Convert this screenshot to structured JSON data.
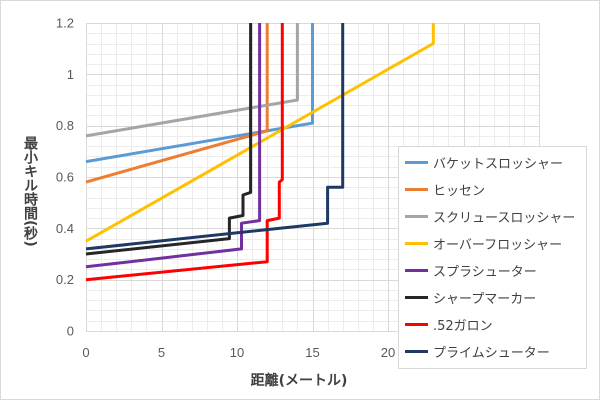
{
  "chart_data": {
    "type": "line",
    "xlabel": "距離(メートル)",
    "ylabel": "最小キル時間(秒)",
    "xlim": [
      0,
      30
    ],
    "ylim": [
      0,
      1.2
    ],
    "xticks": [
      "0",
      "5",
      "10",
      "15",
      "20"
    ],
    "yticks": [
      "0",
      "0.2",
      "0.4",
      "0.6",
      "0.8",
      "1",
      "1.2"
    ],
    "grid": true,
    "minor_grid": true,
    "legend_position": "right",
    "series": [
      {
        "name": "バケットスロッシャー",
        "color": "#5B9BD5",
        "points": [
          [
            0,
            0.66
          ],
          [
            15,
            0.81
          ],
          [
            15,
            1.2
          ]
        ]
      },
      {
        "name": "ヒッセン",
        "color": "#ED7D31",
        "points": [
          [
            0,
            0.58
          ],
          [
            12,
            0.78
          ],
          [
            12,
            1.2
          ]
        ]
      },
      {
        "name": "スクリュースロッシャー",
        "color": "#A5A5A5",
        "points": [
          [
            0,
            0.76
          ],
          [
            14,
            0.9
          ],
          [
            14,
            1.2
          ]
        ]
      },
      {
        "name": "オーバーフロッシャー",
        "color": "#FFC000",
        "points": [
          [
            0,
            0.35
          ],
          [
            23,
            1.12
          ],
          [
            23,
            1.2
          ]
        ]
      },
      {
        "name": "スプラシューター",
        "color": "#7030A0",
        "points": [
          [
            0,
            0.25
          ],
          [
            10.3,
            0.32
          ],
          [
            10.3,
            0.42
          ],
          [
            11.5,
            0.43
          ],
          [
            11.5,
            1.2
          ]
        ]
      },
      {
        "name": "シャープマーカー",
        "color": "#262626",
        "points": [
          [
            0,
            0.3
          ],
          [
            9.5,
            0.36
          ],
          [
            9.5,
            0.44
          ],
          [
            10.4,
            0.45
          ],
          [
            10.4,
            0.53
          ],
          [
            10.9,
            0.54
          ],
          [
            10.9,
            1.2
          ]
        ]
      },
      {
        "name": ".52ガロン",
        "color": "#FF0000",
        "points": [
          [
            0,
            0.2
          ],
          [
            12,
            0.27
          ],
          [
            12,
            0.43
          ],
          [
            12.8,
            0.44
          ],
          [
            12.8,
            0.58
          ],
          [
            13,
            0.59
          ],
          [
            13,
            1.2
          ]
        ]
      },
      {
        "name": "プライムシューター",
        "color": "#1F3864",
        "points": [
          [
            0,
            0.32
          ],
          [
            16,
            0.42
          ],
          [
            16,
            0.56
          ],
          [
            17,
            0.56
          ],
          [
            17,
            1.2
          ]
        ]
      }
    ]
  }
}
